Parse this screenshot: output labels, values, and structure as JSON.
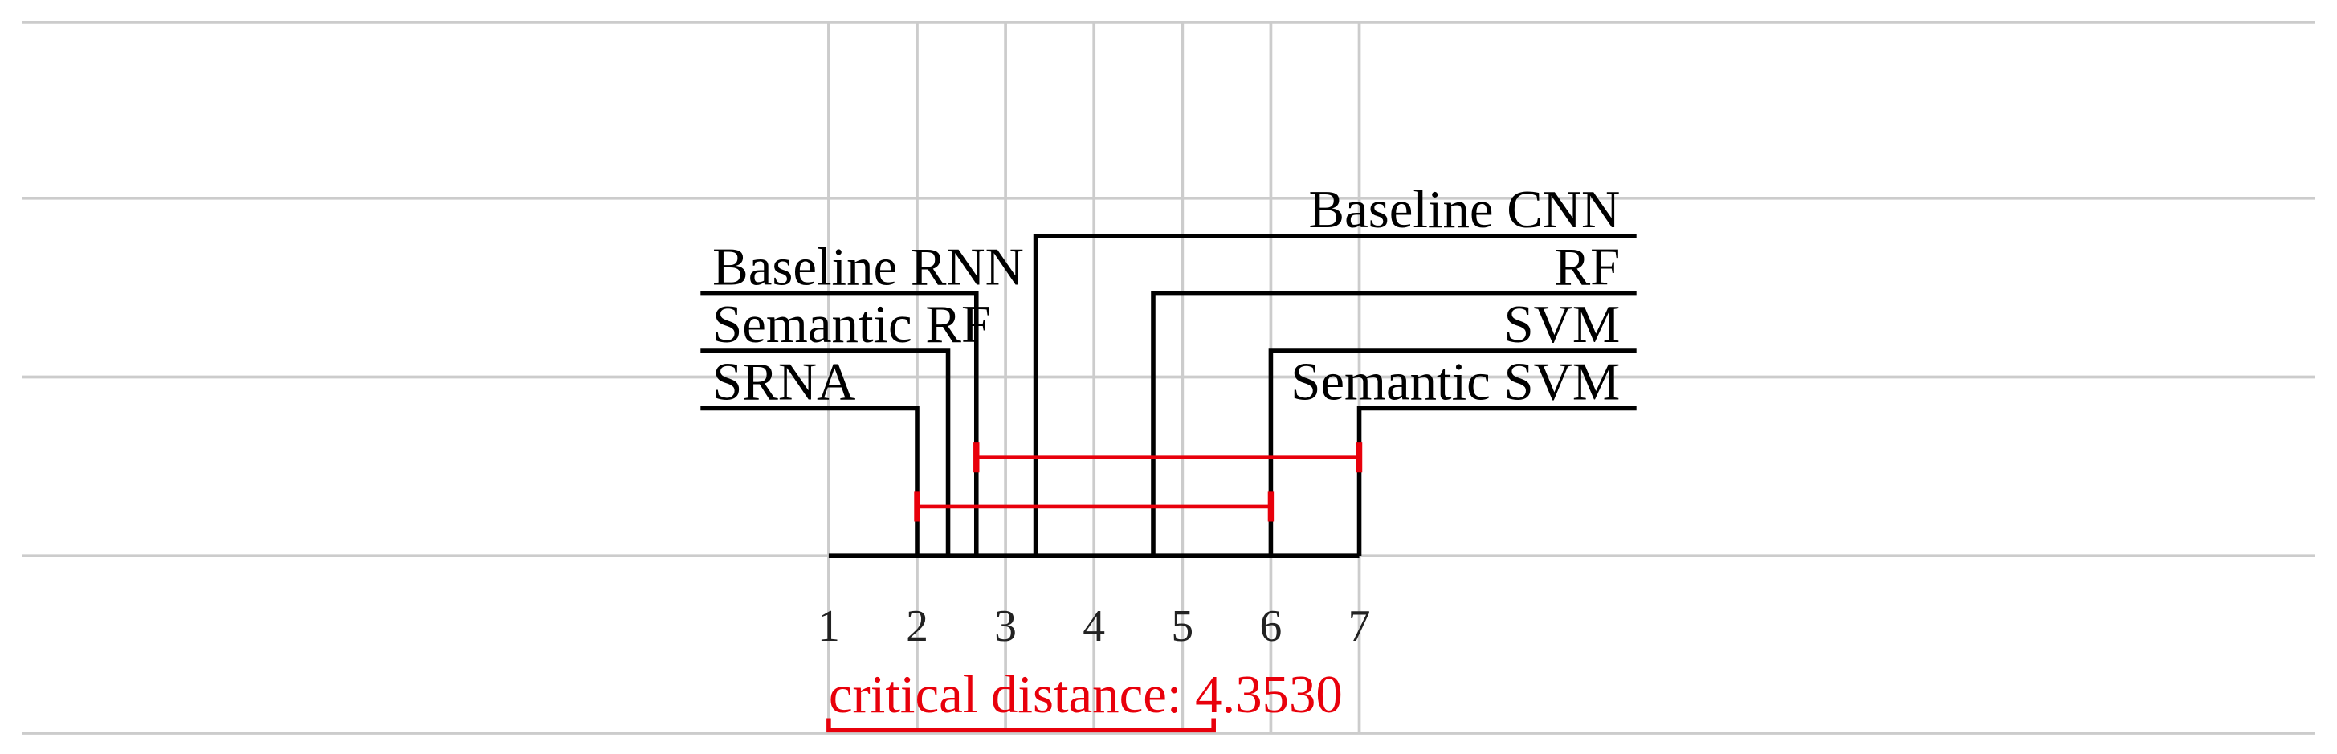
{
  "chart_data": {
    "type": "critical-difference",
    "methods": [
      "SRNA",
      "Semantic RF",
      "Baseline RNN",
      "Baseline CNN",
      "RF",
      "SVM",
      "Semantic SVM"
    ],
    "ranks": [
      2.0,
      2.35,
      2.67,
      3.34,
      4.67,
      6.0,
      7.0
    ],
    "xlim": [
      1,
      7
    ],
    "xticks": [
      1,
      2,
      3,
      4,
      5,
      6,
      7
    ],
    "cliques": [
      [
        2.0,
        6.0
      ],
      [
        2.67,
        7.0
      ]
    ],
    "critical_distance": {
      "value": 4.353,
      "label": "critical distance: 4.3530"
    },
    "line_color": "#000000",
    "clique_color": "#e8000b",
    "grid": true
  }
}
